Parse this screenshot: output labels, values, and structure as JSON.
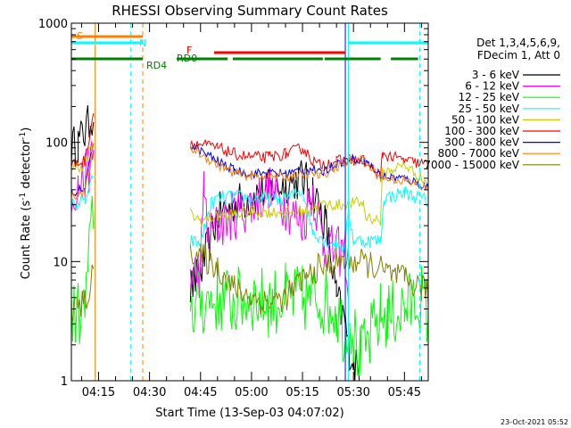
{
  "chart_data": {
    "type": "line",
    "title": "RHESSI Observing Summary Count Rates",
    "xlabel": "Start Time (13-Sep-03 04:07:02)",
    "ylabel_main": "Count Rate (s",
    "ylabel_sup1": "-1",
    "ylabel_mid": " detector",
    "ylabel_sup2": "-1",
    "ylabel_end": ")",
    "yscale": "log",
    "ylim": [
      1,
      1000
    ],
    "xlim_min": [
      247,
      352
    ],
    "x_ticks": [
      {
        "label": "04:15",
        "value": 255
      },
      {
        "label": "04:30",
        "value": 270
      },
      {
        "label": "04:45",
        "value": 285
      },
      {
        "label": "05:00",
        "value": 300
      },
      {
        "label": "05:15",
        "value": 315
      },
      {
        "label": "05:30",
        "value": 330
      },
      {
        "label": "05:45",
        "value": 345
      }
    ],
    "y_ticks": [
      {
        "label": "1",
        "value": 1
      },
      {
        "label": "10",
        "value": 10
      },
      {
        "label": "100",
        "value": 100
      },
      {
        "label": "1000",
        "value": 1000
      }
    ],
    "legend_header": [
      "Det 1,3,4,5,6,9,",
      "FDecim 1, Att 0"
    ],
    "series": [
      {
        "name": "3 - 6 keV",
        "color": "#000000",
        "x": [
          247,
          249,
          251,
          253.5,
          254,
          258,
          268,
          275,
          278,
          282,
          285,
          290,
          295,
          300,
          305,
          310,
          315,
          318,
          322,
          325,
          327.6,
          328.5,
          330,
          332,
          338.5
        ],
        "y": [
          90,
          100,
          120,
          180,
          null,
          null,
          null,
          null,
          null,
          6,
          8,
          25,
          30,
          35,
          40,
          45,
          50,
          40,
          20,
          5,
          3,
          2,
          1.5,
          1,
          null
        ]
      },
      {
        "name": "6 - 12 keV",
        "color": "#ff00ff",
        "x": [
          247,
          249,
          251,
          253,
          253.5,
          254,
          258,
          268,
          278,
          280,
          282,
          285,
          286,
          287,
          290,
          295,
          300,
          305,
          310,
          315,
          318,
          321,
          324,
          327.6,
          328.5,
          330,
          338.5
        ],
        "y": [
          38,
          42,
          50,
          70,
          85,
          null,
          null,
          null,
          null,
          null,
          8,
          8,
          50,
          15,
          20,
          25,
          30,
          40,
          30,
          20,
          40,
          15,
          12,
          12,
          5,
          null,
          null
        ]
      },
      {
        "name": "12 - 25 keV",
        "color": "#00ff00",
        "x": [
          247,
          251,
          253.5,
          254,
          258,
          268,
          278,
          280,
          282,
          285,
          290,
          295,
          300,
          305,
          310,
          315,
          320,
          325,
          327.6,
          328.5,
          332,
          338,
          340,
          345,
          350,
          352
        ],
        "y": [
          3.5,
          3.8,
          30,
          null,
          null,
          null,
          null,
          null,
          4,
          4.5,
          5,
          4.5,
          5,
          4.5,
          5,
          4.8,
          5,
          4,
          2.5,
          3.8,
          1.5,
          3.5,
          3.5,
          4,
          5,
          3.5
        ]
      },
      {
        "name": "25 - 50 keV",
        "color": "#00ffff",
        "x": [
          247,
          251,
          253.5,
          254,
          258,
          268,
          278,
          280,
          282,
          285,
          288,
          290,
          295,
          300,
          305,
          310,
          315,
          318,
          322,
          325,
          327.6,
          328.5,
          330,
          338,
          339,
          345,
          352
        ],
        "y": [
          30,
          32,
          50,
          null,
          null,
          null,
          null,
          null,
          15,
          14,
          30,
          34,
          35,
          34,
          33,
          33,
          40,
          18,
          15,
          14,
          13,
          28,
          15,
          15,
          34,
          38,
          32
        ]
      },
      {
        "name": "50 - 100 keV",
        "color": "#cccc00",
        "x": [
          247,
          251,
          253.5,
          254,
          258,
          268,
          278,
          280,
          282,
          285,
          290,
          295,
          300,
          305,
          310,
          315,
          318,
          320,
          325,
          327.6,
          328.5,
          333,
          333.5,
          338,
          338.5,
          345,
          352
        ],
        "y": [
          60,
          65,
          100,
          null,
          null,
          null,
          null,
          null,
          25,
          22,
          24,
          25,
          26,
          26,
          26,
          26,
          28,
          30,
          30,
          30,
          31,
          31,
          24,
          22,
          55,
          65,
          45
        ]
      },
      {
        "name": "100 - 300 keV",
        "color": "#ff0000",
        "x": [
          247,
          251,
          253.5,
          254,
          258,
          268,
          278,
          280,
          282,
          290,
          295,
          300,
          305,
          310,
          315,
          318,
          320,
          325,
          327.6,
          328.5,
          333,
          338,
          338.5,
          345,
          352
        ],
        "y": [
          65,
          70,
          180,
          null,
          null,
          null,
          null,
          null,
          100,
          90,
          80,
          75,
          75,
          80,
          90,
          70,
          65,
          70,
          70,
          72,
          70,
          52,
          80,
          70,
          65
        ]
      },
      {
        "name": "300 - 800 keV",
        "color": "#0000ff",
        "x": [
          247,
          251,
          253.5,
          254,
          258,
          268,
          278,
          280,
          282,
          290,
          295,
          300,
          305,
          310,
          315,
          318,
          320,
          325,
          327.6,
          328.5,
          333,
          338,
          345,
          352
        ],
        "y": [
          38,
          40,
          100,
          null,
          null,
          null,
          null,
          null,
          95,
          70,
          58,
          55,
          55,
          55,
          58,
          60,
          55,
          66,
          70,
          72,
          72,
          52,
          50,
          42
        ]
      },
      {
        "name": "800 - 7000 keV",
        "color": "#ff8000",
        "x": [
          247,
          251,
          253.5,
          254,
          258,
          268,
          278,
          280,
          282,
          290,
          295,
          300,
          305,
          310,
          315,
          318,
          320,
          325,
          327.6,
          328.5,
          333,
          338,
          345,
          352
        ],
        "y": [
          36,
          38,
          90,
          null,
          null,
          null,
          null,
          null,
          90,
          65,
          55,
          52,
          52,
          52,
          53,
          55,
          52,
          62,
          68,
          70,
          70,
          50,
          48,
          40
        ]
      },
      {
        "name": "7000 - 15000 keV",
        "color": "#808000",
        "x": [
          247,
          251,
          253.5,
          254,
          258,
          268,
          278,
          280,
          282,
          285,
          290,
          295,
          300,
          305,
          310,
          315,
          320,
          325,
          330,
          335,
          340,
          345,
          350,
          352
        ],
        "y": [
          4,
          4.5,
          8,
          null,
          null,
          null,
          null,
          null,
          13,
          11,
          9,
          6,
          5,
          4.5,
          5,
          7,
          9,
          10,
          10,
          9.5,
          8,
          7,
          6,
          5.5
        ]
      }
    ],
    "annotations": [
      {
        "label": "S",
        "color": "#ff8000"
      },
      {
        "label": "N",
        "color": "#00ffff"
      },
      {
        "label": "F",
        "color": "#ff0000"
      },
      {
        "label": "RD0",
        "color": "#008000"
      },
      {
        "label": "RD4",
        "color": "#008000"
      }
    ],
    "state_bars": {
      "S": [
        [
          247,
          268
        ]
      ],
      "N": [
        [
          247,
          268
        ],
        [
          328.5,
          352
        ]
      ],
      "F": [
        [
          289,
          327.6
        ]
      ],
      "RD": [
        [
          247,
          268
        ],
        [
          278,
          293
        ],
        [
          294.5,
          321
        ],
        [
          321.5,
          338
        ],
        [
          341,
          349
        ]
      ]
    },
    "vlines": [
      {
        "x": 254,
        "color": "#ff8000",
        "style": "solid"
      },
      {
        "x": 264.5,
        "color": "#00ffff",
        "style": "dashed"
      },
      {
        "x": 268,
        "color": "#ff8000",
        "style": "dashed"
      },
      {
        "x": 328.5,
        "color": "#00ffff",
        "style": "solid"
      },
      {
        "x": 327.6,
        "color": "#0000ff",
        "style": "solid"
      },
      {
        "x": 349.5,
        "color": "#00ffff",
        "style": "dashed"
      }
    ]
  },
  "footer": {
    "timestamp": "23-Oct-2021 05:52"
  }
}
